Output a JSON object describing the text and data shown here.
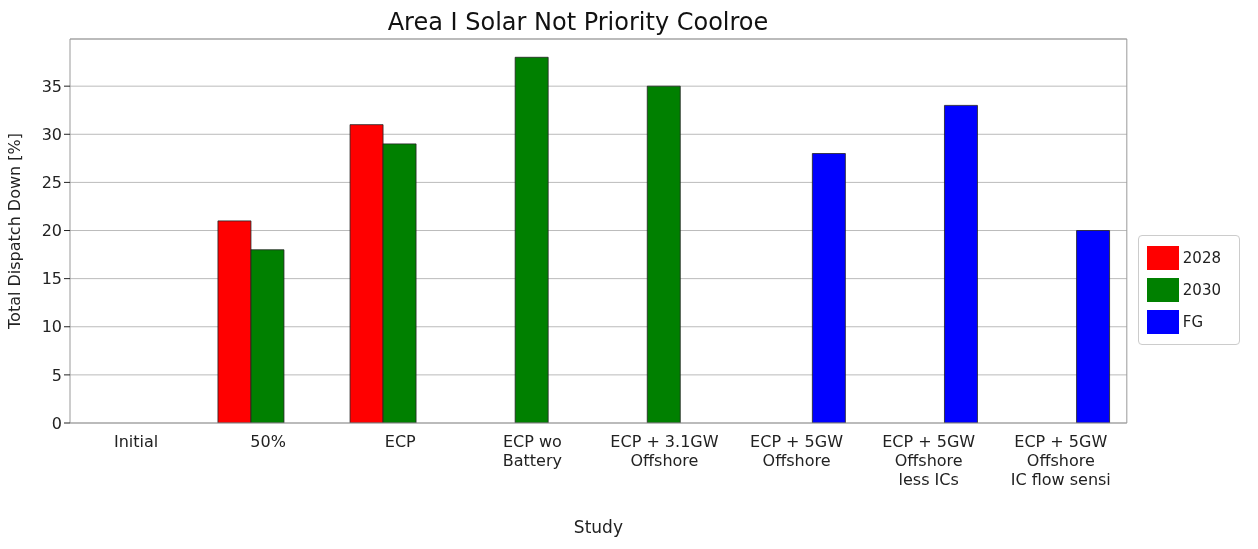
{
  "chart_data": {
    "type": "bar",
    "title": "Area I Solar Not Priority Coolroe",
    "xlabel": "Study",
    "ylabel": "Total Dispatch Down [%]",
    "categories": [
      "Initial",
      "50%",
      "ECP",
      "ECP wo\nBattery",
      "ECP + 3.1GW\nOffshore",
      "ECP + 5GW\nOffshore",
      "ECP + 5GW\nOffshore\nless ICs",
      "ECP + 5GW\nOffshore\nIC flow sensi"
    ],
    "series": [
      {
        "name": "2028",
        "color": "#ff0000",
        "values": [
          null,
          21,
          31,
          null,
          null,
          null,
          null,
          null
        ]
      },
      {
        "name": "2030",
        "color": "#008000",
        "values": [
          null,
          18,
          29,
          38,
          35,
          null,
          null,
          null
        ]
      },
      {
        "name": "FG",
        "color": "#0000ff",
        "values": [
          null,
          null,
          null,
          null,
          null,
          28,
          33,
          20
        ]
      }
    ],
    "ylim": [
      0,
      39.9
    ],
    "yticks": [
      0,
      5,
      10,
      15,
      20,
      25,
      30,
      35
    ],
    "grid": "y",
    "legend": "right"
  }
}
